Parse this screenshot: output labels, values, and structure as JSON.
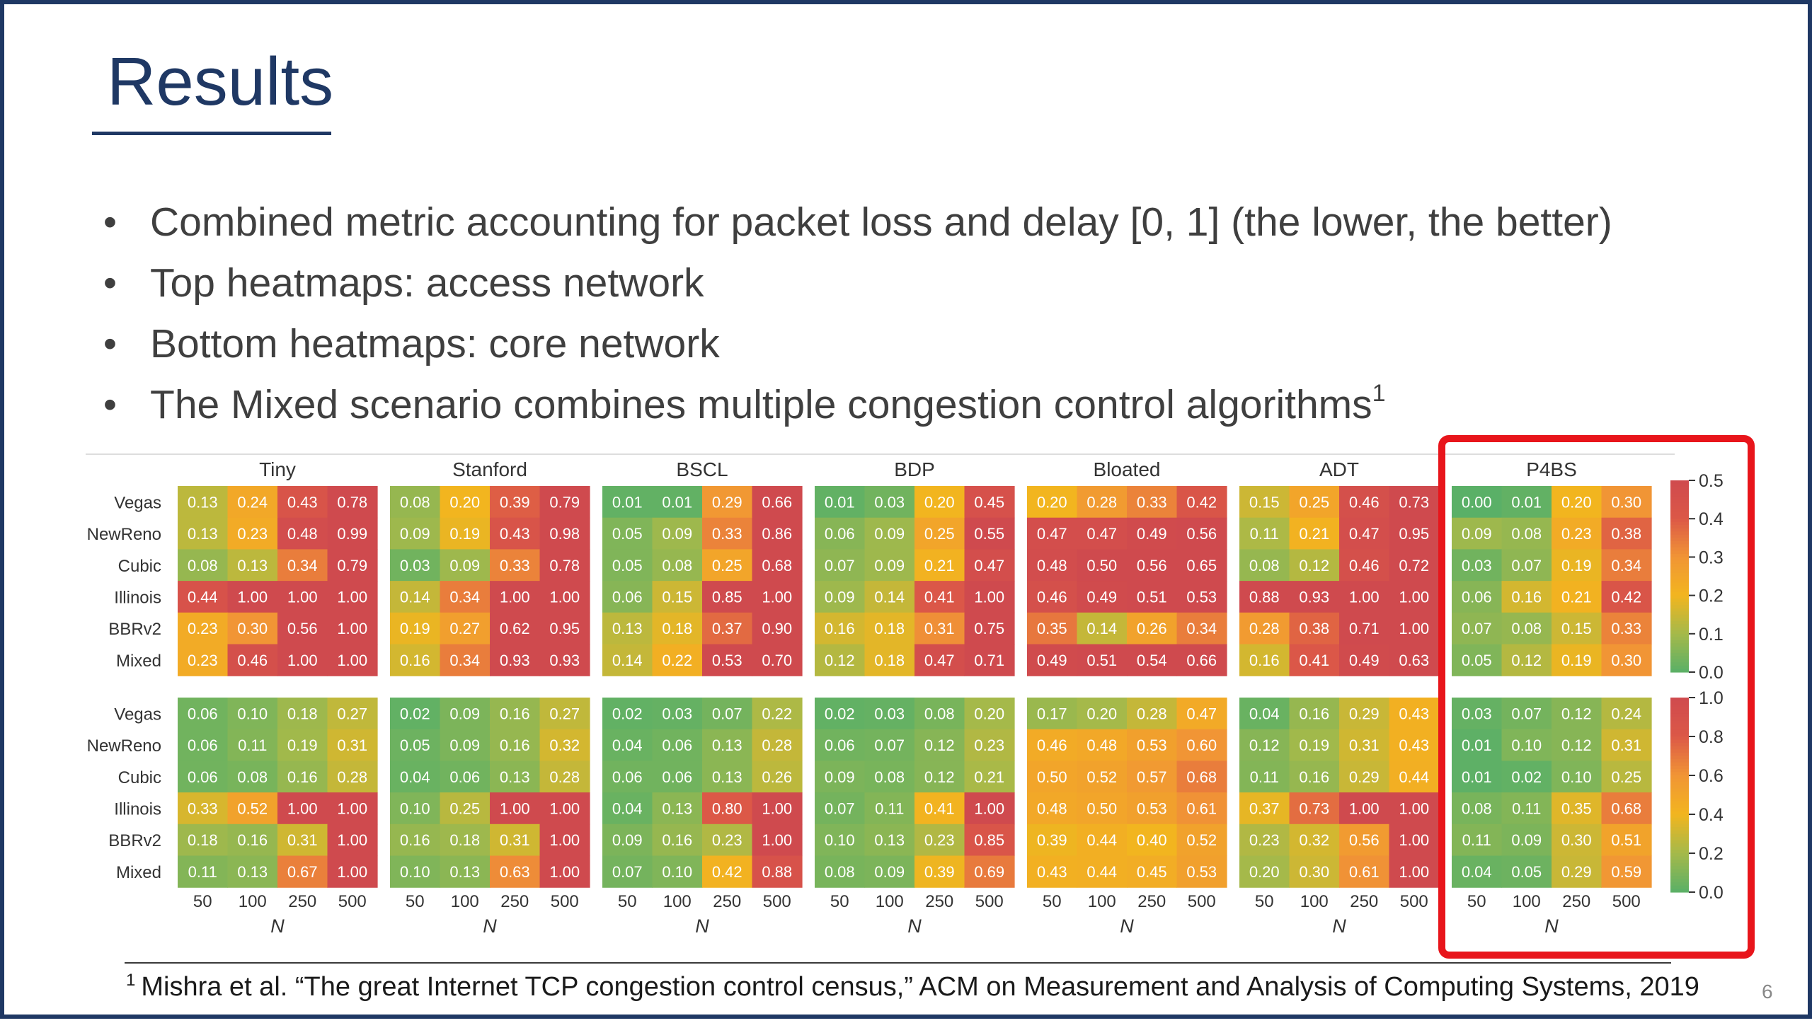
{
  "slide": {
    "title": "Results",
    "bullets": [
      {
        "text": "Combined metric accounting for packet loss and delay [0, 1] (the lower, the better)",
        "sup": ""
      },
      {
        "text": "Top heatmaps: access network",
        "sup": ""
      },
      {
        "text": "Bottom heatmaps: core network",
        "sup": ""
      },
      {
        "text": "The Mixed scenario combines multiple congestion control algorithms",
        "sup": "1"
      }
    ],
    "footnote": {
      "mark": "1",
      "text": "Mishra et al. “The great Internet TCP congestion control census,” ACM on Measurement and Analysis of Computing Systems, 2019"
    },
    "slide_number": "6",
    "highlight_color": "#e8151b"
  },
  "chart_data": {
    "type": "heatmap",
    "rows": [
      "Vegas",
      "NewReno",
      "Cubic",
      "Illinois",
      "BBRv2",
      "Mixed"
    ],
    "columns": [
      "50",
      "100",
      "250",
      "500"
    ],
    "xlabel": "N",
    "colormap": [
      "#5ab067",
      "#a5b94a",
      "#f2b51f",
      "#f19535",
      "#dc5847",
      "#cf4a4e"
    ],
    "highlighted_panel": "P4BS",
    "colorbars": [
      {
        "range": [
          0,
          0.5
        ],
        "ticks": [
          "0.5",
          "0.4",
          "0.3",
          "0.2",
          "0.1",
          "0.0"
        ]
      },
      {
        "range": [
          0,
          1.0
        ],
        "ticks": [
          "1.0",
          "0.8",
          "0.6",
          "0.4",
          "0.2",
          "0.0"
        ]
      }
    ],
    "panels": [
      {
        "name": "Tiny",
        "top": [
          [
            "0.13",
            "0.24",
            "0.43",
            "0.78"
          ],
          [
            "0.13",
            "0.23",
            "0.48",
            "0.99"
          ],
          [
            "0.08",
            "0.13",
            "0.34",
            "0.79"
          ],
          [
            "0.44",
            "1.00",
            "1.00",
            "1.00"
          ],
          [
            "0.23",
            "0.30",
            "0.56",
            "1.00"
          ],
          [
            "0.23",
            "0.46",
            "1.00",
            "1.00"
          ]
        ],
        "bottom": [
          [
            "0.06",
            "0.10",
            "0.18",
            "0.27"
          ],
          [
            "0.06",
            "0.11",
            "0.19",
            "0.31"
          ],
          [
            "0.06",
            "0.08",
            "0.16",
            "0.28"
          ],
          [
            "0.33",
            "0.52",
            "1.00",
            "1.00"
          ],
          [
            "0.18",
            "0.16",
            "0.31",
            "1.00"
          ],
          [
            "0.11",
            "0.13",
            "0.67",
            "1.00"
          ]
        ]
      },
      {
        "name": "Stanford",
        "top": [
          [
            "0.08",
            "0.20",
            "0.39",
            "0.79"
          ],
          [
            "0.09",
            "0.19",
            "0.43",
            "0.98"
          ],
          [
            "0.03",
            "0.09",
            "0.33",
            "0.78"
          ],
          [
            "0.14",
            "0.34",
            "1.00",
            "1.00"
          ],
          [
            "0.19",
            "0.27",
            "0.62",
            "0.95"
          ],
          [
            "0.16",
            "0.34",
            "0.93",
            "0.93"
          ]
        ],
        "bottom": [
          [
            "0.02",
            "0.09",
            "0.16",
            "0.27"
          ],
          [
            "0.05",
            "0.09",
            "0.16",
            "0.32"
          ],
          [
            "0.04",
            "0.06",
            "0.13",
            "0.28"
          ],
          [
            "0.10",
            "0.25",
            "1.00",
            "1.00"
          ],
          [
            "0.16",
            "0.18",
            "0.31",
            "1.00"
          ],
          [
            "0.10",
            "0.13",
            "0.63",
            "1.00"
          ]
        ]
      },
      {
        "name": "BSCL",
        "top": [
          [
            "0.01",
            "0.01",
            "0.29",
            "0.66"
          ],
          [
            "0.05",
            "0.09",
            "0.33",
            "0.86"
          ],
          [
            "0.05",
            "0.08",
            "0.25",
            "0.68"
          ],
          [
            "0.06",
            "0.15",
            "0.85",
            "1.00"
          ],
          [
            "0.13",
            "0.18",
            "0.37",
            "0.90"
          ],
          [
            "0.14",
            "0.22",
            "0.53",
            "0.70"
          ]
        ],
        "bottom": [
          [
            "0.02",
            "0.03",
            "0.07",
            "0.22"
          ],
          [
            "0.04",
            "0.06",
            "0.13",
            "0.28"
          ],
          [
            "0.06",
            "0.06",
            "0.13",
            "0.26"
          ],
          [
            "0.04",
            "0.13",
            "0.80",
            "1.00"
          ],
          [
            "0.09",
            "0.16",
            "0.23",
            "1.00"
          ],
          [
            "0.07",
            "0.10",
            "0.42",
            "0.88"
          ]
        ]
      },
      {
        "name": "BDP",
        "top": [
          [
            "0.01",
            "0.03",
            "0.20",
            "0.45"
          ],
          [
            "0.06",
            "0.09",
            "0.25",
            "0.55"
          ],
          [
            "0.07",
            "0.09",
            "0.21",
            "0.47"
          ],
          [
            "0.09",
            "0.14",
            "0.41",
            "1.00"
          ],
          [
            "0.16",
            "0.18",
            "0.31",
            "0.75"
          ],
          [
            "0.12",
            "0.18",
            "0.47",
            "0.71"
          ]
        ],
        "bottom": [
          [
            "0.02",
            "0.03",
            "0.08",
            "0.20"
          ],
          [
            "0.06",
            "0.07",
            "0.12",
            "0.23"
          ],
          [
            "0.09",
            "0.08",
            "0.12",
            "0.21"
          ],
          [
            "0.07",
            "0.11",
            "0.41",
            "1.00"
          ],
          [
            "0.10",
            "0.13",
            "0.23",
            "0.85"
          ],
          [
            "0.08",
            "0.09",
            "0.39",
            "0.69"
          ]
        ]
      },
      {
        "name": "Bloated",
        "top": [
          [
            "0.20",
            "0.28",
            "0.33",
            "0.42"
          ],
          [
            "0.47",
            "0.47",
            "0.49",
            "0.56"
          ],
          [
            "0.48",
            "0.50",
            "0.56",
            "0.65"
          ],
          [
            "0.46",
            "0.49",
            "0.51",
            "0.53"
          ],
          [
            "0.35",
            "0.14",
            "0.26",
            "0.34"
          ],
          [
            "0.49",
            "0.51",
            "0.54",
            "0.66"
          ]
        ],
        "bottom": [
          [
            "0.17",
            "0.20",
            "0.28",
            "0.47"
          ],
          [
            "0.46",
            "0.48",
            "0.53",
            "0.60"
          ],
          [
            "0.50",
            "0.52",
            "0.57",
            "0.68"
          ],
          [
            "0.48",
            "0.50",
            "0.53",
            "0.61"
          ],
          [
            "0.39",
            "0.44",
            "0.40",
            "0.52"
          ],
          [
            "0.43",
            "0.44",
            "0.45",
            "0.53"
          ]
        ]
      },
      {
        "name": "ADT",
        "top": [
          [
            "0.15",
            "0.25",
            "0.46",
            "0.73"
          ],
          [
            "0.11",
            "0.21",
            "0.47",
            "0.95"
          ],
          [
            "0.08",
            "0.12",
            "0.46",
            "0.72"
          ],
          [
            "0.88",
            "0.93",
            "1.00",
            "1.00"
          ],
          [
            "0.28",
            "0.38",
            "0.71",
            "1.00"
          ],
          [
            "0.16",
            "0.41",
            "0.49",
            "0.63"
          ]
        ],
        "bottom": [
          [
            "0.04",
            "0.16",
            "0.29",
            "0.43"
          ],
          [
            "0.12",
            "0.19",
            "0.31",
            "0.43"
          ],
          [
            "0.11",
            "0.16",
            "0.29",
            "0.44"
          ],
          [
            "0.37",
            "0.73",
            "1.00",
            "1.00"
          ],
          [
            "0.23",
            "0.32",
            "0.56",
            "1.00"
          ],
          [
            "0.20",
            "0.30",
            "0.61",
            "1.00"
          ]
        ]
      },
      {
        "name": "P4BS",
        "top": [
          [
            "0.00",
            "0.01",
            "0.20",
            "0.30"
          ],
          [
            "0.09",
            "0.08",
            "0.23",
            "0.38"
          ],
          [
            "0.03",
            "0.07",
            "0.19",
            "0.34"
          ],
          [
            "0.06",
            "0.16",
            "0.21",
            "0.42"
          ],
          [
            "0.07",
            "0.08",
            "0.15",
            "0.33"
          ],
          [
            "0.05",
            "0.12",
            "0.19",
            "0.30"
          ]
        ],
        "bottom": [
          [
            "0.03",
            "0.07",
            "0.12",
            "0.24"
          ],
          [
            "0.01",
            "0.10",
            "0.12",
            "0.31"
          ],
          [
            "0.01",
            "0.02",
            "0.10",
            "0.25"
          ],
          [
            "0.08",
            "0.11",
            "0.35",
            "0.68"
          ],
          [
            "0.11",
            "0.09",
            "0.30",
            "0.51"
          ],
          [
            "0.04",
            "0.05",
            "0.29",
            "0.59"
          ]
        ]
      }
    ]
  }
}
